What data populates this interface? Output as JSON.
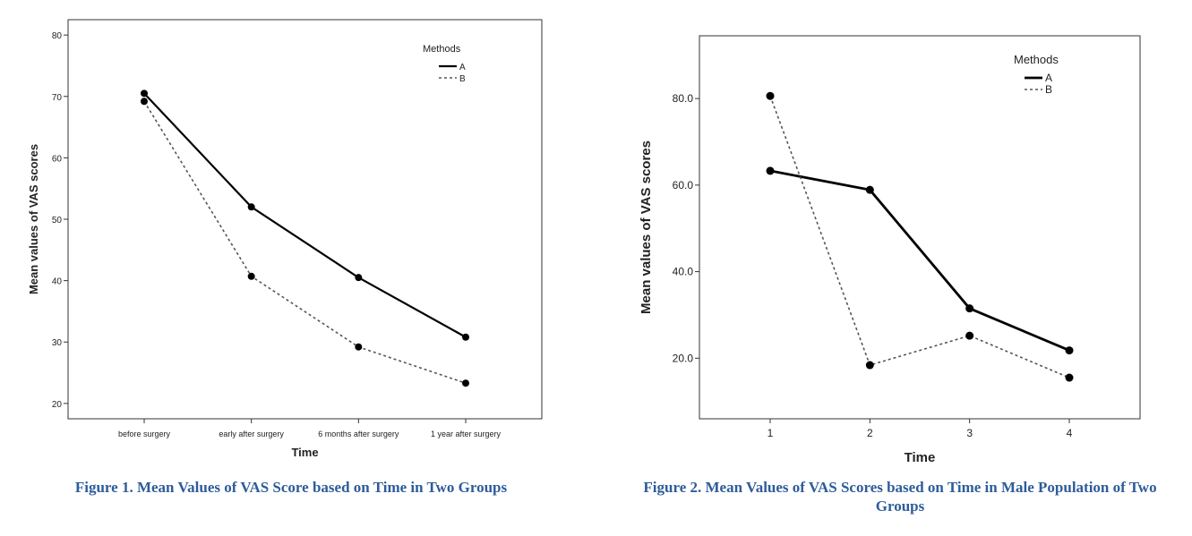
{
  "chart_data": [
    {
      "type": "line",
      "xlabel": "Time",
      "ylabel": "Mean values of VAS scores",
      "categories": [
        "before surgery",
        "early after surgery",
        "6 months after surgery",
        "1 year after surgery"
      ],
      "y_ticks": [
        "20",
        "30",
        "40",
        "50",
        "60",
        "70",
        "80"
      ],
      "ylim": [
        17.5,
        82.5
      ],
      "legend_title": "Methods",
      "legend_position": "top-right",
      "series": [
        {
          "name": "A",
          "style": "solid",
          "values": [
            70.5,
            52.0,
            40.5,
            30.8
          ]
        },
        {
          "name": "B",
          "style": "dotted",
          "values": [
            69.2,
            40.7,
            29.2,
            23.3
          ]
        }
      ]
    },
    {
      "type": "line",
      "xlabel": "Time",
      "ylabel": "Mean values of VAS scores",
      "categories": [
        "1",
        "2",
        "3",
        "4"
      ],
      "y_ticks": [
        "20.0",
        "40.0",
        "60.0",
        "80.0"
      ],
      "ylim": [
        6,
        94.5
      ],
      "legend_title": "Methods",
      "legend_position": "top-right",
      "series": [
        {
          "name": "A",
          "style": "solid",
          "values": [
            63.3,
            58.9,
            31.5,
            21.8
          ]
        },
        {
          "name": "B",
          "style": "dotted",
          "values": [
            80.6,
            18.4,
            25.2,
            15.5
          ]
        }
      ]
    }
  ],
  "captions": {
    "fig1": "Figure 1. Mean Values of VAS Score based on Time in Two Groups",
    "fig2": "Figure 2. Mean Values of VAS Scores based on Time in Male Population of Two Groups"
  },
  "colors": {
    "caption": "#2e5c9a",
    "line": "#000000",
    "dotted": "#555555"
  }
}
